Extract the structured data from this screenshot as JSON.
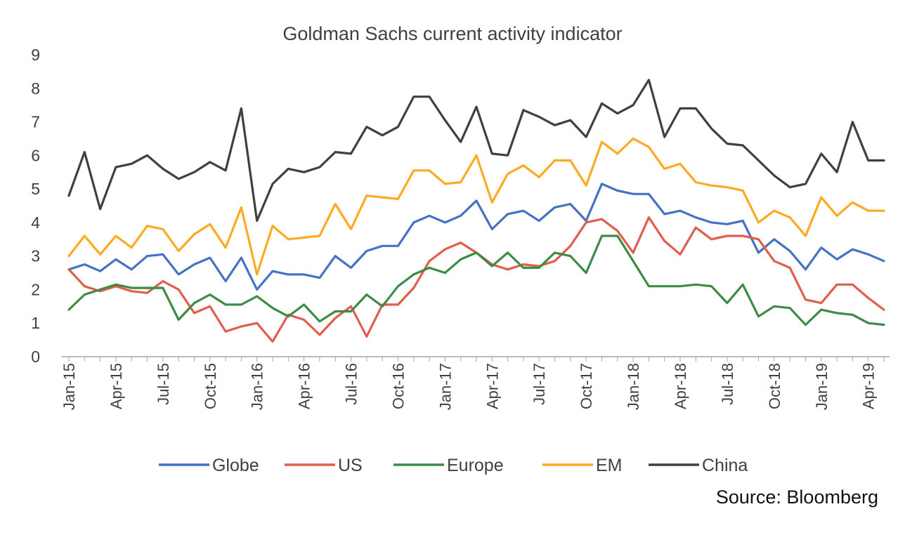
{
  "chart_data": {
    "type": "line",
    "title": "Goldman Sachs current activity indicator",
    "xlabel": "",
    "ylabel": "",
    "ylim": [
      0,
      9
    ],
    "yticks": [
      "0",
      "1",
      "2",
      "3",
      "4",
      "5",
      "6",
      "7",
      "8",
      "9"
    ],
    "xtick_labels": [
      "Jan-15",
      "Apr-15",
      "Jul-15",
      "Oct-15",
      "Jan-16",
      "Apr-16",
      "Jul-16",
      "Oct-16",
      "Jan-17",
      "Apr-17",
      "Jul-17",
      "Oct-17",
      "Jan-18",
      "Apr-18",
      "Jul-18",
      "Oct-18",
      "Jan-19",
      "Apr-19"
    ],
    "x": [
      "Jan-15",
      "Feb-15",
      "Mar-15",
      "Apr-15",
      "May-15",
      "Jun-15",
      "Jul-15",
      "Aug-15",
      "Sep-15",
      "Oct-15",
      "Nov-15",
      "Dec-15",
      "Jan-16",
      "Feb-16",
      "Mar-16",
      "Apr-16",
      "May-16",
      "Jun-16",
      "Jul-16",
      "Aug-16",
      "Sep-16",
      "Oct-16",
      "Nov-16",
      "Dec-16",
      "Jan-17",
      "Feb-17",
      "Mar-17",
      "Apr-17",
      "May-17",
      "Jun-17",
      "Jul-17",
      "Aug-17",
      "Sep-17",
      "Oct-17",
      "Nov-17",
      "Dec-17",
      "Jan-18",
      "Feb-18",
      "Mar-18",
      "Apr-18",
      "May-18",
      "Jun-18",
      "Jul-18",
      "Aug-18",
      "Sep-18",
      "Oct-18",
      "Nov-18",
      "Dec-18",
      "Jan-19",
      "Feb-19",
      "Mar-19",
      "Apr-19",
      "May-19"
    ],
    "grid": false,
    "legend_position": "bottom",
    "series": [
      {
        "name": "Globe",
        "color": "#4472C4",
        "values": [
          2.6,
          2.75,
          2.55,
          2.9,
          2.6,
          3.0,
          3.05,
          2.45,
          2.75,
          2.95,
          2.25,
          2.95,
          2.0,
          2.55,
          2.45,
          2.45,
          2.35,
          3.0,
          2.65,
          3.15,
          3.3,
          3.3,
          4.0,
          4.2,
          4.0,
          4.2,
          4.65,
          3.8,
          4.25,
          4.35,
          4.05,
          4.45,
          4.55,
          4.05,
          5.15,
          4.95,
          4.85,
          4.85,
          4.25,
          4.35,
          4.15,
          4.0,
          3.95,
          4.05,
          3.1,
          3.5,
          3.15,
          2.6,
          3.25,
          2.9,
          3.2,
          3.05,
          2.85
        ]
      },
      {
        "name": "US",
        "color": "#E15D4C",
        "values": [
          2.6,
          2.1,
          1.95,
          2.1,
          1.95,
          1.9,
          2.25,
          2.0,
          1.3,
          1.5,
          0.75,
          0.9,
          1.0,
          0.45,
          1.25,
          1.1,
          0.65,
          1.15,
          1.5,
          0.6,
          1.55,
          1.55,
          2.05,
          2.85,
          3.2,
          3.4,
          3.1,
          2.75,
          2.6,
          2.75,
          2.7,
          2.85,
          3.3,
          4.0,
          4.1,
          3.75,
          3.1,
          4.15,
          3.45,
          3.05,
          3.85,
          3.5,
          3.6,
          3.6,
          3.5,
          2.85,
          2.65,
          1.7,
          1.6,
          2.15,
          2.15,
          1.75,
          1.4
        ]
      },
      {
        "name": "Europe",
        "color": "#3C8C45",
        "values": [
          1.4,
          1.85,
          2.0,
          2.15,
          2.05,
          2.05,
          2.05,
          1.1,
          1.6,
          1.85,
          1.55,
          1.55,
          1.8,
          1.45,
          1.2,
          1.55,
          1.05,
          1.35,
          1.35,
          1.85,
          1.5,
          2.1,
          2.45,
          2.65,
          2.5,
          2.9,
          3.1,
          2.7,
          3.1,
          2.65,
          2.65,
          3.1,
          3.0,
          2.5,
          3.6,
          3.6,
          2.85,
          2.1,
          2.1,
          2.1,
          2.15,
          2.1,
          1.6,
          2.15,
          1.2,
          1.5,
          1.45,
          0.95,
          1.4,
          1.3,
          1.25,
          1.0,
          0.95
        ]
      },
      {
        "name": "EM",
        "color": "#FFAA22",
        "values": [
          3.0,
          3.6,
          3.05,
          3.6,
          3.25,
          3.9,
          3.8,
          3.15,
          3.65,
          3.95,
          3.25,
          4.45,
          2.45,
          3.9,
          3.5,
          3.55,
          3.6,
          4.55,
          3.8,
          4.8,
          4.75,
          4.7,
          5.55,
          5.55,
          5.15,
          5.2,
          6.0,
          4.6,
          5.45,
          5.7,
          5.35,
          5.85,
          5.85,
          5.1,
          6.4,
          6.05,
          6.5,
          6.25,
          5.6,
          5.75,
          5.2,
          5.1,
          5.05,
          4.95,
          4.0,
          4.35,
          4.15,
          3.6,
          4.75,
          4.2,
          4.6,
          4.35,
          4.35
        ]
      },
      {
        "name": "China",
        "color": "#404040",
        "values": [
          4.8,
          6.1,
          4.4,
          5.65,
          5.75,
          6.0,
          5.6,
          5.3,
          5.5,
          5.8,
          5.55,
          7.4,
          4.05,
          5.15,
          5.6,
          5.5,
          5.65,
          6.1,
          6.05,
          6.85,
          6.6,
          6.85,
          7.75,
          7.75,
          7.05,
          6.4,
          7.45,
          6.05,
          6.0,
          7.35,
          7.15,
          6.9,
          7.05,
          6.55,
          7.55,
          7.25,
          7.5,
          8.25,
          6.55,
          7.4,
          7.4,
          6.8,
          6.35,
          6.3,
          5.85,
          5.4,
          5.05,
          5.15,
          6.05,
          5.5,
          7.0,
          5.85,
          5.85
        ]
      }
    ]
  },
  "source_text": "Source: Bloomberg"
}
